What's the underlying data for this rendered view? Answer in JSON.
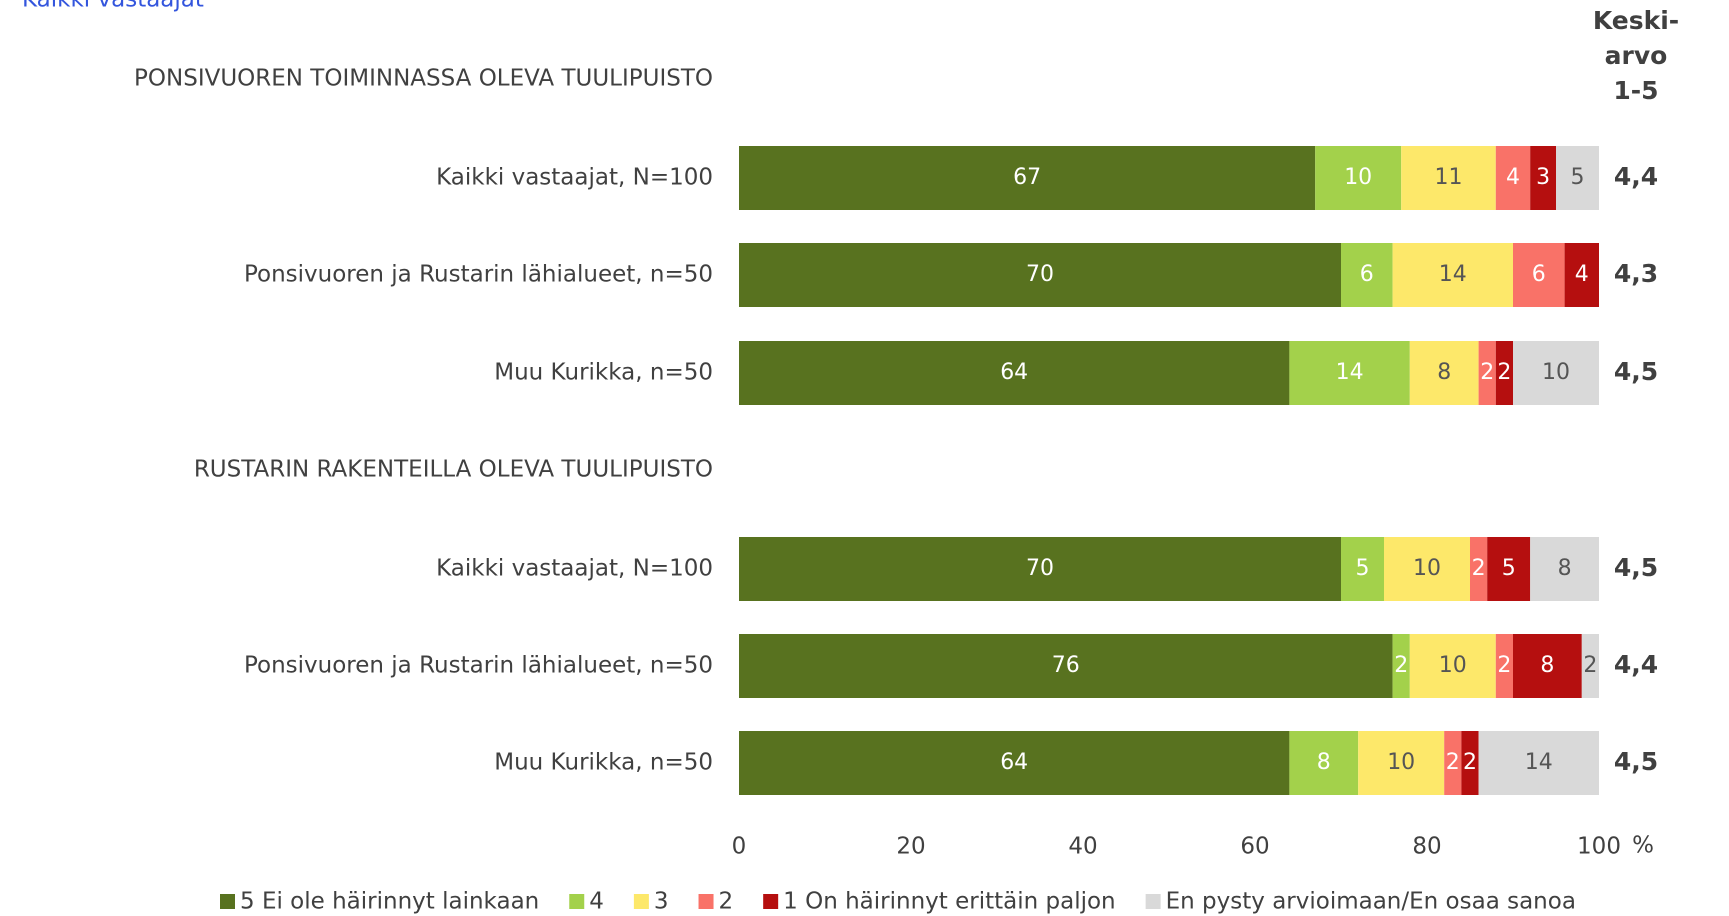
{
  "chart_data": {
    "type": "stacked-bar-horizontal",
    "top_note": "Kaikki vastaajat",
    "groups": [
      {
        "title": "PONSIVUOREN TOIMINNASSA OLEVA TUULIPUISTO",
        "categories": [
          "Kaikki vastaajat, N=100",
          "Ponsivuoren ja Rustarin lähialueet, n=50",
          "Muu Kurikka, n=50"
        ]
      },
      {
        "title": "RUSTARIN RAKENTEILLA OLEVA TUULIPUISTO",
        "categories": [
          "Kaikki vastaajat, N=100",
          "Ponsivuoren ja Rustarin lähialueet, n=50",
          "Muu Kurikka, n=50"
        ]
      }
    ],
    "series": [
      {
        "name": "5 Ei ole häirinnyt lainkaan",
        "color": "#58721f",
        "label_color": "#ffffff",
        "values": [
          67,
          70,
          64,
          70,
          76,
          64
        ]
      },
      {
        "name": "4",
        "color": "#a3d14b",
        "label_color": "#ffffff",
        "values": [
          10,
          6,
          14,
          5,
          2,
          8
        ]
      },
      {
        "name": "3",
        "color": "#fde86a",
        "label_color": "#555555",
        "values": [
          11,
          14,
          8,
          10,
          10,
          10
        ]
      },
      {
        "name": "2",
        "color": "#f97268",
        "label_color": "#ffffff",
        "values": [
          4,
          6,
          2,
          2,
          2,
          2
        ]
      },
      {
        "name": "1 On häirinnyt erittäin paljon",
        "color": "#b50f0f",
        "label_color": "#ffffff",
        "values": [
          3,
          4,
          2,
          5,
          8,
          2
        ]
      },
      {
        "name": "En pysty arvioimaan/En osaa sanoa",
        "color": "#d9d9d9",
        "label_color": "#555555",
        "values": [
          5,
          0,
          10,
          8,
          2,
          14
        ]
      }
    ],
    "mean": {
      "title_lines": [
        "Keski-",
        "arvo",
        "1-5"
      ],
      "values": [
        4.4,
        4.3,
        4.5,
        4.5,
        4.4,
        4.5
      ],
      "value_labels": [
        "4,4",
        "4,3",
        "4,5",
        "4,5",
        "4,4",
        "4,5"
      ]
    },
    "xlim": [
      0,
      100
    ],
    "xticks": [
      0,
      20,
      40,
      60,
      80,
      100
    ],
    "x_unit": "%"
  }
}
